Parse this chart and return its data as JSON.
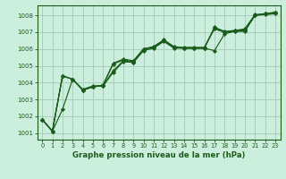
{
  "title": "Graphe pression niveau de la mer (hPa)",
  "bg_color": "#cceedd",
  "grid_color": "#aaccbb",
  "line_color": "#1a5c1a",
  "marker_color": "#1a5c1a",
  "xlim": [
    -0.5,
    23.5
  ],
  "ylim": [
    1000.6,
    1008.6
  ],
  "xticks": [
    0,
    1,
    2,
    3,
    4,
    5,
    6,
    7,
    8,
    9,
    10,
    11,
    12,
    13,
    14,
    15,
    16,
    17,
    18,
    19,
    20,
    21,
    22,
    23
  ],
  "yticks": [
    1001,
    1002,
    1003,
    1004,
    1005,
    1006,
    1007,
    1008
  ],
  "series": [
    [
      1001.8,
      1001.1,
      1002.4,
      1004.2,
      1003.6,
      1003.8,
      1003.8,
      1004.6,
      1005.25,
      1005.2,
      1005.9,
      1006.05,
      1006.45,
      1006.05,
      1006.05,
      1006.05,
      1006.05,
      1005.9,
      1006.9,
      1007.05,
      1007.05,
      1008.0,
      1008.05,
      1008.1
    ],
    [
      1001.8,
      1001.1,
      1004.4,
      1004.2,
      1003.55,
      1003.75,
      1003.8,
      1004.7,
      1005.3,
      1005.2,
      1006.0,
      1006.1,
      1006.5,
      1006.1,
      1006.1,
      1006.1,
      1006.1,
      1007.2,
      1007.0,
      1007.1,
      1007.15,
      1008.0,
      1008.1,
      1008.15
    ],
    [
      1001.8,
      1001.1,
      1004.4,
      1004.2,
      1003.55,
      1003.75,
      1003.85,
      1005.1,
      1005.35,
      1005.25,
      1006.0,
      1006.1,
      1006.5,
      1006.1,
      1006.05,
      1006.05,
      1006.05,
      1007.25,
      1007.0,
      1007.05,
      1007.1,
      1008.0,
      1008.1,
      1008.15
    ],
    [
      1001.8,
      1001.1,
      1004.4,
      1004.2,
      1003.55,
      1003.75,
      1003.85,
      1005.15,
      1005.4,
      1005.3,
      1006.0,
      1006.15,
      1006.55,
      1006.15,
      1006.05,
      1006.05,
      1006.05,
      1007.3,
      1007.05,
      1007.1,
      1007.2,
      1008.05,
      1008.1,
      1008.2
    ]
  ]
}
